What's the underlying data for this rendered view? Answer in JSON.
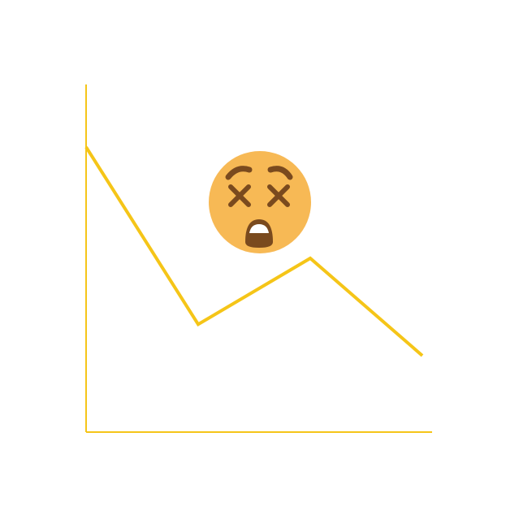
{
  "colors": {
    "line": "#F5C518",
    "axis": "#F5C518",
    "face": "#F7B955",
    "feature": "#7A4A1E",
    "teeth": "#FFFFFF"
  },
  "icon": "dizzy-face-emoji-icon",
  "chart_data": {
    "type": "line",
    "title": "",
    "xlabel": "",
    "ylabel": "",
    "grid": false,
    "legend": "none",
    "x": [
      0,
      1,
      2,
      3
    ],
    "xlim": [
      0,
      3
    ],
    "ylim": [
      0,
      100
    ],
    "series": [
      {
        "values": [
          82,
          31,
          50,
          22
        ]
      }
    ]
  }
}
